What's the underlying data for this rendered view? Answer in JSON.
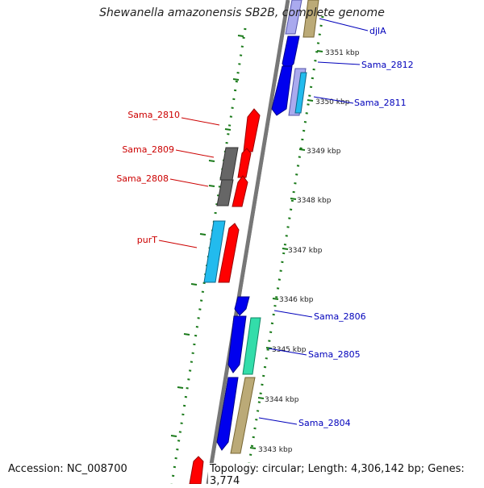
{
  "header": {
    "title": "Shewanella amazonensis SB2B, complete genome"
  },
  "footer": {
    "accession": "Accession: NC_008700",
    "topology": "Topology: circular; Length: 4,306,142 bp; Genes: 3,774"
  },
  "colors": {
    "backbone": "#777777",
    "tick": "#1a7a1a",
    "label_forward": "#cc0000",
    "label_reverse": "#0000bb",
    "gene_red": "#ff0000",
    "gene_blue": "#0000ee",
    "gene_gray": "#666666",
    "gene_cyan": "#22bbee",
    "gene_teal": "#33ddaa",
    "gene_khaki": "#bbaa77"
  },
  "ruler": {
    "labels": [
      "3351 kbp",
      "3350 kbp",
      "3349 kbp",
      "3348 kbp",
      "3347 kbp",
      "3346 kbp",
      "3345 kbp",
      "3344 kbp",
      "3343 kbp"
    ]
  },
  "genes": {
    "labels": [
      "djlA",
      "Sama_2812",
      "Sama_2811",
      "Sama_2810",
      "Sama_2809",
      "Sama_2808",
      "purT",
      "Sama_2806",
      "Sama_2805",
      "Sama_2804"
    ]
  }
}
